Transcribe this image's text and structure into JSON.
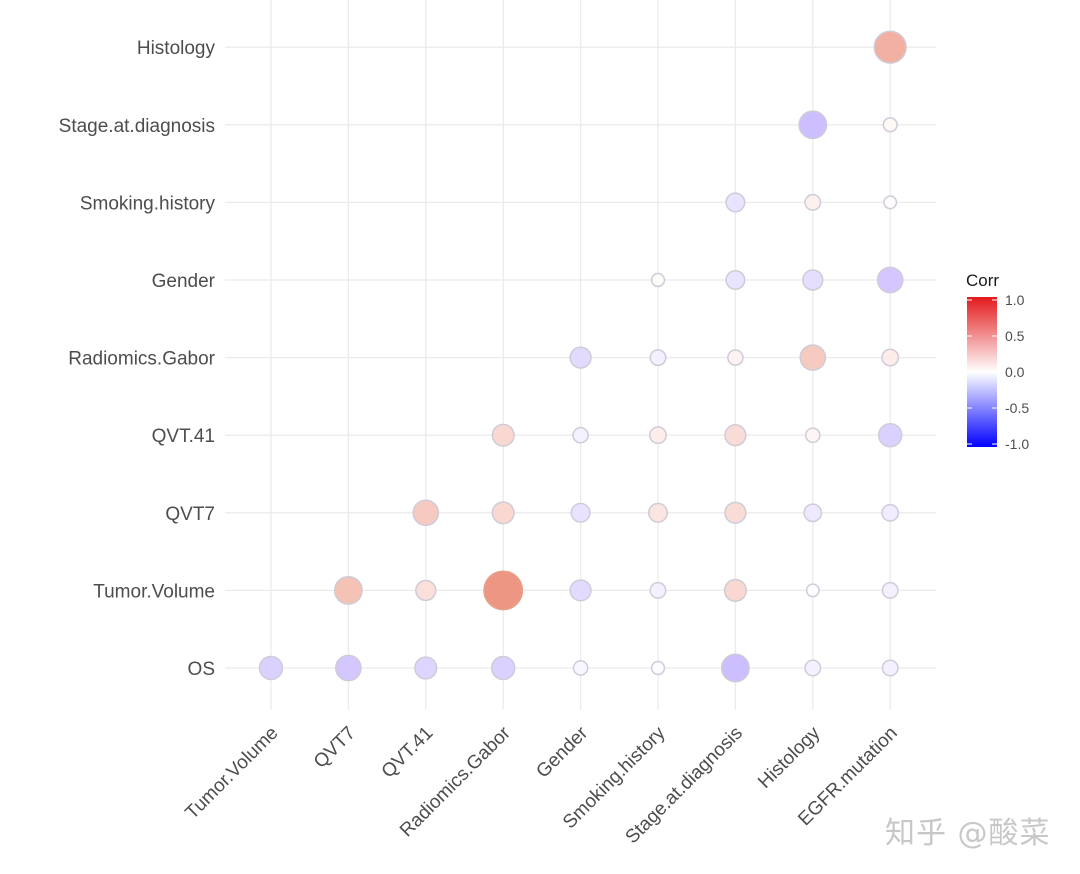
{
  "chart_data": {
    "type": "heatmap",
    "subtype": "correlogram-circles-lower-triangle",
    "title": "",
    "xlabel": "",
    "ylabel": "",
    "x_categories": [
      "Tumor.Volume",
      "QVT7",
      "QVT.41",
      "Radiomics.Gabor",
      "Gender",
      "Smoking.history",
      "Stage.at.diagnosis",
      "Histology",
      "EGFR.mutation"
    ],
    "y_categories": [
      "OS",
      "Tumor.Volume",
      "QVT7",
      "QVT.41",
      "Radiomics.Gabor",
      "Gender",
      "Smoking.history",
      "Stage.at.diagnosis",
      "Histology"
    ],
    "cells": [
      {
        "x": "Tumor.Volume",
        "y": "OS",
        "value": -0.25
      },
      {
        "x": "QVT7",
        "y": "OS",
        "value": -0.3
      },
      {
        "x": "QVT.41",
        "y": "OS",
        "value": -0.22
      },
      {
        "x": "Radiomics.Gabor",
        "y": "OS",
        "value": -0.25
      },
      {
        "x": "Gender",
        "y": "OS",
        "value": -0.05
      },
      {
        "x": "Smoking.history",
        "y": "OS",
        "value": -0.02
      },
      {
        "x": "Stage.at.diagnosis",
        "y": "OS",
        "value": -0.35
      },
      {
        "x": "Histology",
        "y": "OS",
        "value": -0.08
      },
      {
        "x": "EGFR.mutation",
        "y": "OS",
        "value": -0.08
      },
      {
        "x": "QVT7",
        "y": "Tumor.Volume",
        "value": 0.35
      },
      {
        "x": "QVT.41",
        "y": "Tumor.Volume",
        "value": 0.18
      },
      {
        "x": "Radiomics.Gabor",
        "y": "Tumor.Volume",
        "value": 0.6
      },
      {
        "x": "Gender",
        "y": "Tumor.Volume",
        "value": -0.2
      },
      {
        "x": "Smoking.history",
        "y": "Tumor.Volume",
        "value": -0.08
      },
      {
        "x": "Stage.at.diagnosis",
        "y": "Tumor.Volume",
        "value": 0.22
      },
      {
        "x": "Histology",
        "y": "Tumor.Volume",
        "value": -0.01
      },
      {
        "x": "EGFR.mutation",
        "y": "Tumor.Volume",
        "value": -0.08
      },
      {
        "x": "QVT.41",
        "y": "QVT7",
        "value": 0.3
      },
      {
        "x": "Radiomics.Gabor",
        "y": "QVT7",
        "value": 0.22
      },
      {
        "x": "Gender",
        "y": "QVT7",
        "value": -0.15
      },
      {
        "x": "Smoking.history",
        "y": "QVT7",
        "value": 0.15
      },
      {
        "x": "Stage.at.diagnosis",
        "y": "QVT7",
        "value": 0.2
      },
      {
        "x": "Histology",
        "y": "QVT7",
        "value": -0.12
      },
      {
        "x": "EGFR.mutation",
        "y": "QVT7",
        "value": -0.1
      },
      {
        "x": "Radiomics.Gabor",
        "y": "QVT.41",
        "value": 0.22
      },
      {
        "x": "Gender",
        "y": "QVT.41",
        "value": -0.07
      },
      {
        "x": "Smoking.history",
        "y": "QVT.41",
        "value": 0.1
      },
      {
        "x": "Stage.at.diagnosis",
        "y": "QVT.41",
        "value": 0.2
      },
      {
        "x": "Histology",
        "y": "QVT.41",
        "value": 0.05
      },
      {
        "x": "EGFR.mutation",
        "y": "QVT.41",
        "value": -0.25
      },
      {
        "x": "Gender",
        "y": "Radiomics.Gabor",
        "value": -0.2
      },
      {
        "x": "Smoking.history",
        "y": "Radiomics.Gabor",
        "value": -0.08
      },
      {
        "x": "Stage.at.diagnosis",
        "y": "Radiomics.Gabor",
        "value": 0.07
      },
      {
        "x": "Histology",
        "y": "Radiomics.Gabor",
        "value": 0.3
      },
      {
        "x": "EGFR.mutation",
        "y": "Radiomics.Gabor",
        "value": 0.1
      },
      {
        "x": "Smoking.history",
        "y": "Gender",
        "value": 0.02
      },
      {
        "x": "Stage.at.diagnosis",
        "y": "Gender",
        "value": -0.15
      },
      {
        "x": "Histology",
        "y": "Gender",
        "value": -0.18
      },
      {
        "x": "EGFR.mutation",
        "y": "Gender",
        "value": -0.3
      },
      {
        "x": "Stage.at.diagnosis",
        "y": "Smoking.history",
        "value": -0.15
      },
      {
        "x": "Histology",
        "y": "Smoking.history",
        "value": 0.08
      },
      {
        "x": "EGFR.mutation",
        "y": "Smoking.history",
        "value": 0.01
      },
      {
        "x": "Histology",
        "y": "Stage.at.diagnosis",
        "value": -0.35
      },
      {
        "x": "EGFR.mutation",
        "y": "Stage.at.diagnosis",
        "value": 0.04
      },
      {
        "x": "EGFR.mutation",
        "y": "Histology",
        "value": 0.45
      }
    ],
    "size_encodes": "absolute correlation",
    "color_scale": {
      "low": "#0000ff",
      "mid": "#ffffff",
      "high": "#e31a1c",
      "domain": [
        -1,
        1
      ]
    },
    "legend": {
      "title": "Corr",
      "ticks": [
        "1.0",
        "0.5",
        "0.0",
        "-0.5",
        "-1.0"
      ],
      "tick_values": [
        1.0,
        0.5,
        0.0,
        -0.5,
        -1.0
      ],
      "placement": "right"
    },
    "grid": true,
    "x_tick_rotation_deg": 45
  },
  "watermark": "知乎 @酸菜"
}
